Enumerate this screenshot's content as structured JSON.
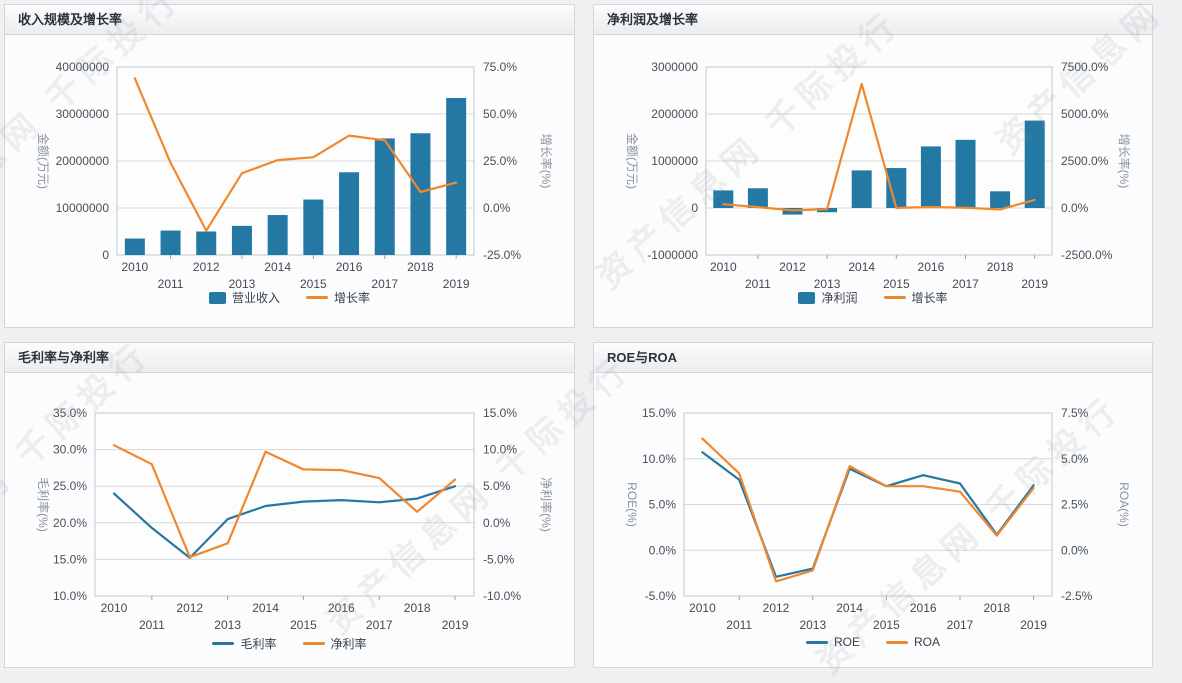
{
  "watermark": {
    "text": "资产信息网 千际投行"
  },
  "colors": {
    "bar_blue": "#2478A4",
    "line_orange": "#F0882D"
  },
  "chart_data": [
    {
      "type": "bar",
      "title": "收入规模及增长率",
      "categories": [
        "2010",
        "2011",
        "2012",
        "2013",
        "2014",
        "2015",
        "2016",
        "2017",
        "2018",
        "2019"
      ],
      "series": [
        {
          "name": "营业收入",
          "kind": "bar",
          "axis": "left",
          "color": "#2478A4",
          "values": [
            3500000,
            5200000,
            5000000,
            6200000,
            8500000,
            11800000,
            17600000,
            24800000,
            25900000,
            33400000
          ]
        },
        {
          "name": "增长率",
          "kind": "line",
          "axis": "right",
          "color": "#F0882D",
          "values": [
            69,
            24,
            -12,
            18.5,
            25.5,
            27,
            38.5,
            36,
            8.5,
            13.5
          ]
        }
      ],
      "left_axis": {
        "title": "金额(万元)",
        "min": 0,
        "max": 40000000,
        "tick_labels": [
          "40000000",
          "30000000",
          "20000000",
          "10000000",
          "0"
        ]
      },
      "right_axis": {
        "title": "增长率(%)",
        "min": -25,
        "max": 75,
        "tick_labels": [
          "75.0%",
          "50.0%",
          "25.0%",
          "0.0%",
          "-25.0%"
        ]
      },
      "legend": [
        "营业收入",
        "增长率"
      ],
      "legend_position": "bottom",
      "grid": true
    },
    {
      "type": "bar",
      "title": "净利润及增长率",
      "categories": [
        "2010",
        "2011",
        "2012",
        "2013",
        "2014",
        "2015",
        "2016",
        "2017",
        "2018",
        "2019"
      ],
      "series": [
        {
          "name": "净利润",
          "kind": "bar",
          "axis": "left",
          "color": "#2478A4",
          "values": [
            375000,
            420000,
            -140000,
            -90000,
            800000,
            850000,
            1310000,
            1450000,
            355000,
            1860000
          ]
        },
        {
          "name": "增长率",
          "kind": "line",
          "axis": "right",
          "color": "#F0882D",
          "values": [
            200,
            50,
            -130,
            -60,
            6600,
            6,
            54,
            11,
            -76,
            430
          ]
        }
      ],
      "left_axis": {
        "title": "金额(万元)",
        "min": -1000000,
        "max": 3000000,
        "tick_labels": [
          "3000000",
          "2000000",
          "1000000",
          "0",
          "-1000000"
        ]
      },
      "right_axis": {
        "title": "增长率(%)",
        "min": -2500,
        "max": 7500,
        "tick_labels": [
          "7500.0%",
          "5000.0%",
          "2500.0%",
          "0.0%",
          "-2500.0%"
        ]
      },
      "legend": [
        "净利润",
        "增长率"
      ],
      "legend_position": "bottom",
      "grid": true
    },
    {
      "type": "line",
      "title": "毛利率与净利率",
      "categories": [
        "2010",
        "2011",
        "2012",
        "2013",
        "2014",
        "2015",
        "2016",
        "2017",
        "2018",
        "2019"
      ],
      "series": [
        {
          "name": "毛利率",
          "kind": "line",
          "axis": "left",
          "color": "#2478A4",
          "values": [
            24.0,
            19.3,
            15.2,
            20.5,
            22.3,
            22.9,
            23.1,
            22.8,
            23.3,
            25.0
          ]
        },
        {
          "name": "净利率",
          "kind": "line",
          "axis": "right",
          "color": "#F0882D",
          "values": [
            10.6,
            8.0,
            -4.7,
            -2.8,
            9.7,
            7.3,
            7.2,
            6.1,
            1.5,
            5.9
          ]
        }
      ],
      "left_axis": {
        "title": "毛利率(%)",
        "min": 10,
        "max": 35,
        "tick_labels": [
          "35.0%",
          "30.0%",
          "25.0%",
          "20.0%",
          "15.0%",
          "10.0%"
        ]
      },
      "right_axis": {
        "title": "净利率(%)",
        "min": -10,
        "max": 15,
        "tick_labels": [
          "15.0%",
          "10.0%",
          "5.0%",
          "0.0%",
          "-5.0%",
          "-10.0%"
        ]
      },
      "legend": [
        "毛利率",
        "净利率"
      ],
      "legend_position": "bottom",
      "grid": true
    },
    {
      "type": "line",
      "title": "ROE与ROA",
      "categories": [
        "2010",
        "2011",
        "2012",
        "2013",
        "2014",
        "2015",
        "2016",
        "2017",
        "2018",
        "2019"
      ],
      "series": [
        {
          "name": "ROE",
          "kind": "line",
          "axis": "left",
          "color": "#2478A4",
          "values": [
            10.7,
            7.7,
            -2.9,
            -2.0,
            8.9,
            7.0,
            8.2,
            7.3,
            1.7,
            7.1
          ]
        },
        {
          "name": "ROA",
          "kind": "line",
          "axis": "right",
          "color": "#F0882D",
          "values": [
            6.1,
            4.2,
            -1.7,
            -1.1,
            4.6,
            3.5,
            3.5,
            3.2,
            0.8,
            3.4
          ]
        }
      ],
      "left_axis": {
        "title": "ROE(%)",
        "min": -5,
        "max": 15,
        "tick_labels": [
          "15.0%",
          "10.0%",
          "5.0%",
          "0.0%",
          "-5.0%"
        ]
      },
      "right_axis": {
        "title": "ROA(%)",
        "min": -2.5,
        "max": 7.5,
        "tick_labels": [
          "7.5%",
          "5.0%",
          "2.5%",
          "0.0%",
          "-2.5%"
        ]
      },
      "legend": [
        "ROE",
        "ROA"
      ],
      "legend_position": "bottom",
      "grid": true
    }
  ]
}
